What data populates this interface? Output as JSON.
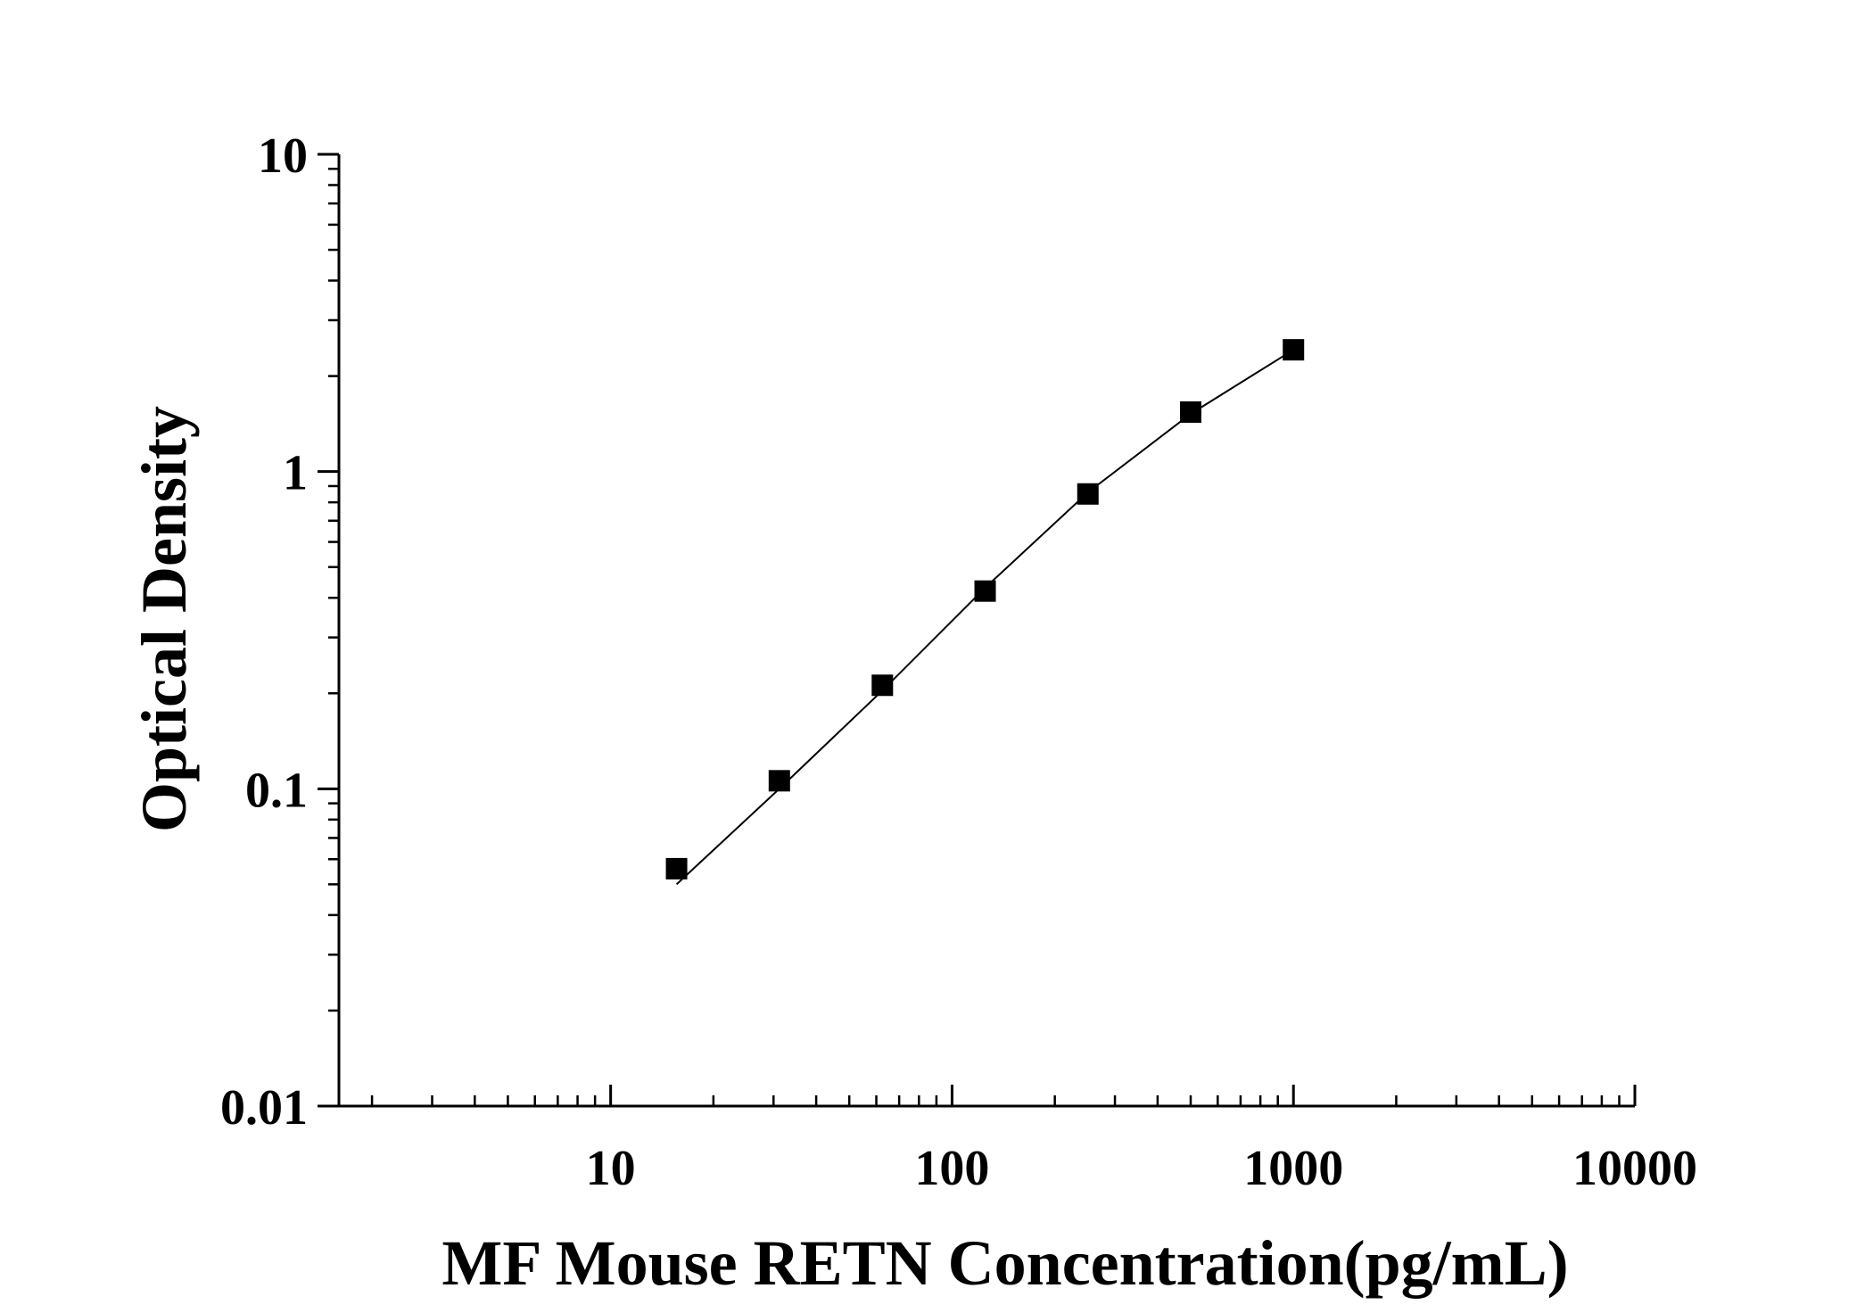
{
  "chart_data": {
    "type": "scatter",
    "title": "",
    "xlabel": "MF Mouse RETN Concentration(pg/mL)",
    "ylabel": "Optical Density",
    "x_scale": "log",
    "y_scale": "log",
    "xlim": [
      1.6,
      10000
    ],
    "ylim": [
      0.01,
      10
    ],
    "x_ticks": [
      10,
      100,
      1000,
      10000
    ],
    "x_tick_labels": [
      "10",
      "100",
      "1000",
      "10000"
    ],
    "y_ticks": [
      0.01,
      0.1,
      1,
      10
    ],
    "y_tick_labels": [
      "0.01",
      "0.1",
      "1",
      "10"
    ],
    "grid": false,
    "legend": "none",
    "series": [
      {
        "marker": "square",
        "color": "#000000",
        "points": [
          {
            "x": 15.6,
            "y": 0.056
          },
          {
            "x": 31.2,
            "y": 0.106
          },
          {
            "x": 62.5,
            "y": 0.212
          },
          {
            "x": 125,
            "y": 0.42
          },
          {
            "x": 250,
            "y": 0.85
          },
          {
            "x": 500,
            "y": 1.54
          },
          {
            "x": 1000,
            "y": 2.42
          }
        ]
      }
    ],
    "fit_line": {
      "color": "#000000",
      "points": [
        {
          "x": 15.6,
          "y": 0.05
        },
        {
          "x": 31.2,
          "y": 0.1
        },
        {
          "x": 62.5,
          "y": 0.204
        },
        {
          "x": 125,
          "y": 0.43
        },
        {
          "x": 250,
          "y": 0.86
        },
        {
          "x": 500,
          "y": 1.52
        },
        {
          "x": 1000,
          "y": 2.42
        }
      ]
    }
  }
}
